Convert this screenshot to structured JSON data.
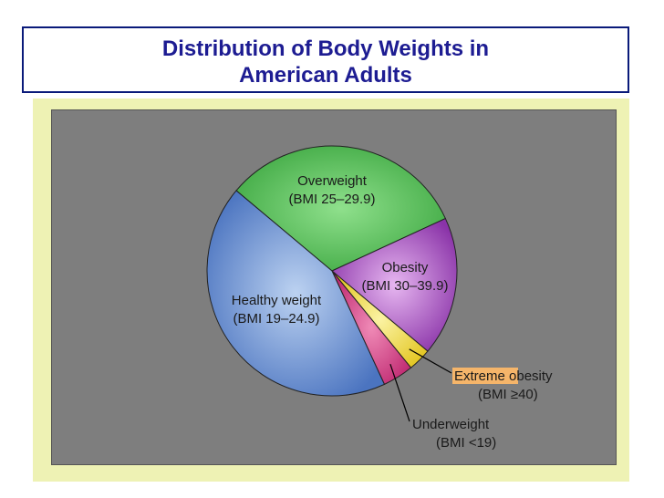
{
  "title": {
    "line1": "Distribution of Body Weights in",
    "line2": "American Adults"
  },
  "colors": {
    "title": "#1d1c92",
    "panel_background": "#eef2b4",
    "chart_background": "#7e7e7e",
    "highlight": "#f5b56a"
  },
  "chart_data": {
    "type": "pie",
    "title": "Distribution of Body Weights in American Adults",
    "slices": [
      {
        "label": "Overweight",
        "sublabel": "(BMI 25–29.9)",
        "value": 32,
        "color": "#57c15a"
      },
      {
        "label": "Obesity",
        "sublabel": "(BMI 30–39.9)",
        "value": 18,
        "color": "#a851c0"
      },
      {
        "label": "Extreme obesity",
        "sublabel": "(BMI ≥40)",
        "value": 3,
        "color": "#f3e04a"
      },
      {
        "label": "Underweight",
        "sublabel": "(BMI <19)",
        "value": 4,
        "color": "#d43e86"
      },
      {
        "label": "Healthy weight",
        "sublabel": "(BMI 19–24.9)",
        "value": 43,
        "color": "#5c86cc"
      }
    ]
  }
}
